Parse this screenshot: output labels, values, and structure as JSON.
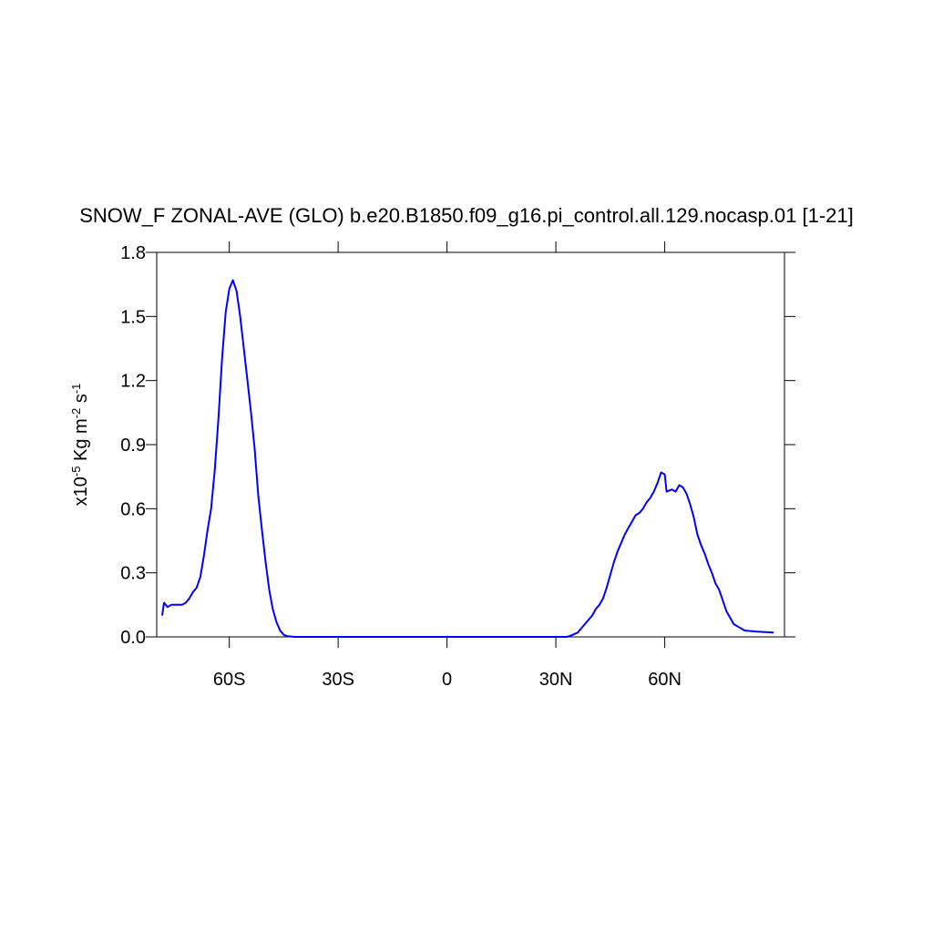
{
  "chart_data": {
    "type": "line",
    "title": "SNOW_F ZONAL-AVE (GLO) b.e20.B1850.f09_g16.pi_control.all.129.nocasp.01 [1-21]",
    "ylabel": [
      "x10",
      "-5",
      " Kg m",
      "-2",
      " s",
      "-1"
    ],
    "xlim": [
      -80,
      93
    ],
    "ylim": [
      0,
      1.8
    ],
    "xticks": [
      {
        "value": -60,
        "label": "60S"
      },
      {
        "value": -30,
        "label": "30S"
      },
      0,
      {
        "value": 30,
        "label": "30N"
      },
      {
        "value": 60,
        "label": "60N"
      }
    ],
    "yticks": [
      {
        "value": 0,
        "label": "0.0"
      },
      0.3,
      0.6,
      0.9,
      1.2,
      1.5,
      1.8
    ],
    "series": [
      {
        "color": "#0000ff",
        "x": [
          -78.5,
          -78,
          -77,
          -76,
          -75,
          -73,
          -72,
          -71,
          -70,
          -69,
          -68,
          -67,
          -66,
          -65,
          -64,
          -63,
          -62,
          -61,
          -60,
          -59,
          -58,
          -57,
          -56,
          -55,
          -54,
          -53,
          -52,
          -51,
          -50,
          -49,
          -48,
          -47,
          -46,
          -45,
          -44,
          -42,
          -30,
          0,
          30,
          33,
          34,
          36,
          38,
          40,
          41,
          42,
          43,
          44,
          45,
          46,
          47,
          48,
          49,
          50,
          51,
          52,
          53,
          54,
          55,
          56,
          57,
          58,
          59,
          60,
          60.5,
          62,
          63,
          64,
          65,
          66,
          67,
          68,
          69,
          70,
          71,
          72,
          73,
          74,
          75,
          76,
          77,
          78,
          79,
          80,
          82,
          85,
          90
        ],
        "values": [
          0.1,
          0.16,
          0.14,
          0.15,
          0.15,
          0.15,
          0.16,
          0.18,
          0.21,
          0.23,
          0.28,
          0.38,
          0.5,
          0.6,
          0.78,
          1.02,
          1.3,
          1.52,
          1.63,
          1.67,
          1.62,
          1.5,
          1.35,
          1.2,
          1.05,
          0.88,
          0.66,
          0.5,
          0.35,
          0.22,
          0.13,
          0.07,
          0.03,
          0.01,
          0.003,
          0,
          0,
          0,
          0,
          0,
          0.005,
          0.02,
          0.06,
          0.1,
          0.13,
          0.15,
          0.18,
          0.23,
          0.29,
          0.35,
          0.4,
          0.44,
          0.48,
          0.51,
          0.54,
          0.57,
          0.58,
          0.6,
          0.63,
          0.65,
          0.68,
          0.72,
          0.77,
          0.76,
          0.68,
          0.69,
          0.68,
          0.71,
          0.7,
          0.67,
          0.62,
          0.56,
          0.48,
          0.43,
          0.39,
          0.34,
          0.3,
          0.25,
          0.22,
          0.17,
          0.12,
          0.09,
          0.06,
          0.05,
          0.03,
          0.025,
          0.02
        ]
      }
    ]
  }
}
